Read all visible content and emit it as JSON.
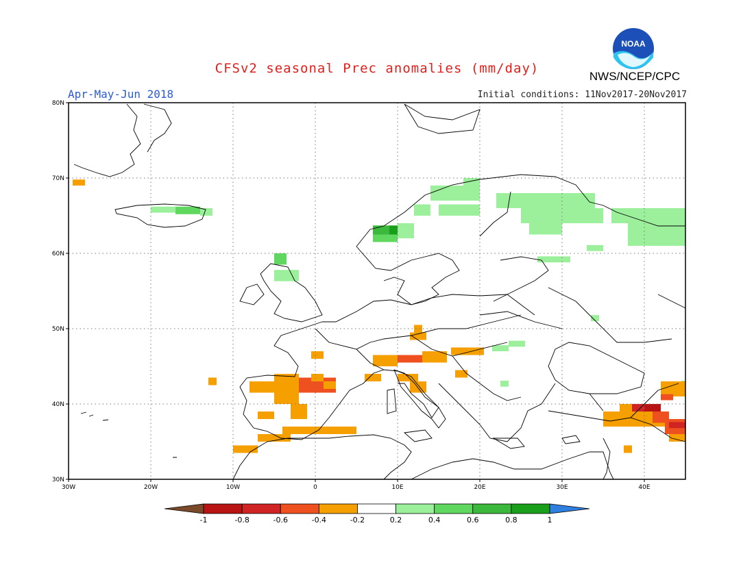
{
  "title": "CFSv2 seasonal Prec anomalies (mm/day)",
  "period": "Apr-May-Jun 2018",
  "initial_conditions": "Initial conditions: 11Nov2017-20Nov2017",
  "agency": "NWS/NCEP/CPC",
  "logo_text": "NOAA",
  "map": {
    "lon_range": [
      -30,
      45
    ],
    "lat_range": [
      30,
      80
    ],
    "lon_ticks": [
      {
        "value": -30,
        "label": "30W"
      },
      {
        "value": -20,
        "label": "20W"
      },
      {
        "value": -10,
        "label": "10W"
      },
      {
        "value": 0,
        "label": "0"
      },
      {
        "value": 10,
        "label": "10E"
      },
      {
        "value": 20,
        "label": "20E"
      },
      {
        "value": 30,
        "label": "30E"
      },
      {
        "value": 40,
        "label": "40E"
      }
    ],
    "lat_ticks": [
      {
        "value": 30,
        "label": "30N"
      },
      {
        "value": 40,
        "label": "40N"
      },
      {
        "value": 50,
        "label": "50N"
      },
      {
        "value": 60,
        "label": "60N"
      },
      {
        "value": 70,
        "label": "70N"
      },
      {
        "value": 80,
        "label": "80N"
      }
    ]
  },
  "colorbar": {
    "labels": [
      "-1",
      "-0.8",
      "-0.6",
      "-0.4",
      "-0.2",
      "0.2",
      "0.4",
      "0.6",
      "0.8",
      "1"
    ],
    "low_arrow_color": "#7a4a2a",
    "colors": [
      "#b81414",
      "#d02424",
      "#ee5020",
      "#f5a000",
      "#ffffff",
      "#9cf09c",
      "#60d860",
      "#3cb83c",
      "#199f19"
    ],
    "high_arrow_color": "#2f7fe0"
  },
  "anomaly_cells": [
    {
      "lon": -29.5,
      "lat": 69,
      "w": 1.5,
      "h": 0.8,
      "cls": "-0.4"
    },
    {
      "lon": -20,
      "lat": 65.4,
      "w": 3,
      "h": 0.8,
      "cls": "0.2"
    },
    {
      "lon": -17,
      "lat": 65.2,
      "w": 3,
      "h": 1,
      "cls": "0.4"
    },
    {
      "lon": -14,
      "lat": 65.0,
      "w": 1.5,
      "h": 1,
      "cls": "0.2"
    },
    {
      "lon": -5,
      "lat": 58.5,
      "w": 1.5,
      "h": 1.5,
      "cls": "0.4"
    },
    {
      "lon": -5,
      "lat": 56.3,
      "w": 3,
      "h": 1.5,
      "cls": "0.2"
    },
    {
      "lon": 7,
      "lat": 62.5,
      "w": 2,
      "h": 1.2,
      "cls": "0.6"
    },
    {
      "lon": 9,
      "lat": 62.5,
      "w": 1.5,
      "h": 1.2,
      "cls": "0.8"
    },
    {
      "lon": 7,
      "lat": 61.5,
      "w": 3,
      "h": 1,
      "cls": "0.4"
    },
    {
      "lon": 10,
      "lat": 62,
      "w": 2,
      "h": 2,
      "cls": "0.2"
    },
    {
      "lon": 12,
      "lat": 65,
      "w": 2,
      "h": 1.5,
      "cls": "0.2"
    },
    {
      "lon": 14,
      "lat": 67,
      "w": 6,
      "h": 2,
      "cls": "0.2"
    },
    {
      "lon": 15,
      "lat": 65,
      "w": 5,
      "h": 1.5,
      "cls": "0.2"
    },
    {
      "lon": 18,
      "lat": 68.5,
      "w": 2,
      "h": 1.5,
      "cls": "0.2"
    },
    {
      "lon": 22,
      "lat": 66,
      "w": 12,
      "h": 2,
      "cls": "0.2"
    },
    {
      "lon": 25,
      "lat": 64,
      "w": 10,
      "h": 2,
      "cls": "0.2"
    },
    {
      "lon": 26,
      "lat": 62.5,
      "w": 4,
      "h": 1.5,
      "cls": "0.2"
    },
    {
      "lon": 36,
      "lat": 64,
      "w": 9,
      "h": 2,
      "cls": "0.2"
    },
    {
      "lon": 38,
      "lat": 61,
      "w": 7,
      "h": 3,
      "cls": "0.2"
    },
    {
      "lon": 27,
      "lat": 58.8,
      "w": 4,
      "h": 0.8,
      "cls": "0.2"
    },
    {
      "lon": 33,
      "lat": 60.3,
      "w": 2,
      "h": 0.8,
      "cls": "0.2"
    },
    {
      "lon": 21.5,
      "lat": 47,
      "w": 2,
      "h": 0.8,
      "cls": "0.2"
    },
    {
      "lon": 23.5,
      "lat": 47.6,
      "w": 2,
      "h": 0.8,
      "cls": "0.2"
    },
    {
      "lon": 22.5,
      "lat": 42.3,
      "w": 1,
      "h": 0.8,
      "cls": "0.2"
    },
    {
      "lon": 33.5,
      "lat": 51,
      "w": 1,
      "h": 0.8,
      "cls": "0.2"
    },
    {
      "lon": 44.5,
      "lat": 42.3,
      "w": 0.5,
      "h": 0.8,
      "cls": "0.2"
    },
    {
      "lon": -2.5,
      "lat": 41.5,
      "w": 5,
      "h": 2,
      "cls": "-0.6"
    },
    {
      "lon": -5,
      "lat": 42,
      "w": 2.5,
      "h": 1,
      "cls": "-0.4"
    },
    {
      "lon": -8,
      "lat": 41.5,
      "w": 3,
      "h": 1.5,
      "cls": "-0.4"
    },
    {
      "lon": -13,
      "lat": 42.5,
      "w": 1,
      "h": 1,
      "cls": "-0.4"
    },
    {
      "lon": -5,
      "lat": 40,
      "w": 3,
      "h": 4,
      "cls": "-0.4"
    },
    {
      "lon": -7,
      "lat": 38,
      "w": 2,
      "h": 1,
      "cls": "-0.4"
    },
    {
      "lon": -3,
      "lat": 38,
      "w": 2,
      "h": 2,
      "cls": "-0.4"
    },
    {
      "lon": -0.5,
      "lat": 43,
      "w": 1.5,
      "h": 1,
      "cls": "-0.4"
    },
    {
      "lon": -0.5,
      "lat": 46,
      "w": 1.5,
      "h": 1,
      "cls": "-0.4"
    },
    {
      "lon": 1,
      "lat": 42,
      "w": 1.5,
      "h": 1,
      "cls": "-0.4"
    },
    {
      "lon": -4,
      "lat": 36,
      "w": 9,
      "h": 1,
      "cls": "-0.4"
    },
    {
      "lon": -7,
      "lat": 35,
      "w": 4,
      "h": 1,
      "cls": "-0.4"
    },
    {
      "lon": -10,
      "lat": 33.5,
      "w": 3,
      "h": 1,
      "cls": "-0.4"
    },
    {
      "lon": 6,
      "lat": 43,
      "w": 2,
      "h": 1,
      "cls": "-0.4"
    },
    {
      "lon": 7,
      "lat": 45,
      "w": 3,
      "h": 1.5,
      "cls": "-0.4"
    },
    {
      "lon": 10,
      "lat": 45.5,
      "w": 3,
      "h": 1,
      "cls": "-0.6"
    },
    {
      "lon": 13,
      "lat": 45.5,
      "w": 3,
      "h": 1.5,
      "cls": "-0.4"
    },
    {
      "lon": 11.5,
      "lat": 48.5,
      "w": 2,
      "h": 1,
      "cls": "-0.4"
    },
    {
      "lon": 12,
      "lat": 49.5,
      "w": 1,
      "h": 1,
      "cls": "-0.4"
    },
    {
      "lon": 16.5,
      "lat": 46.5,
      "w": 4,
      "h": 1,
      "cls": "-0.4"
    },
    {
      "lon": 10,
      "lat": 43,
      "w": 2.5,
      "h": 1,
      "cls": "-0.4"
    },
    {
      "lon": 11.5,
      "lat": 41.5,
      "w": 2,
      "h": 1.5,
      "cls": "-0.4"
    },
    {
      "lon": 17,
      "lat": 43.5,
      "w": 1.5,
      "h": 1,
      "cls": "-0.4"
    },
    {
      "lon": 35,
      "lat": 37,
      "w": 8,
      "h": 2,
      "cls": "-0.4"
    },
    {
      "lon": 37,
      "lat": 39,
      "w": 3,
      "h": 1,
      "cls": "-0.4"
    },
    {
      "lon": 42,
      "lat": 41,
      "w": 3,
      "h": 2,
      "cls": "-0.4"
    },
    {
      "lon": 43,
      "lat": 35,
      "w": 2,
      "h": 2,
      "cls": "-0.4"
    },
    {
      "lon": 37.5,
      "lat": 33.5,
      "w": 1,
      "h": 1,
      "cls": "-0.4"
    },
    {
      "lon": 38.5,
      "lat": 39,
      "w": 1.5,
      "h": 1,
      "cls": "-0.8"
    },
    {
      "lon": 40,
      "lat": 39,
      "w": 2,
      "h": 1,
      "cls": "-1"
    },
    {
      "lon": 41,
      "lat": 37.5,
      "w": 2,
      "h": 1.5,
      "cls": "-0.6"
    },
    {
      "lon": 42.5,
      "lat": 36,
      "w": 2.5,
      "h": 2,
      "cls": "-0.6"
    },
    {
      "lon": 43,
      "lat": 36.8,
      "w": 2,
      "h": 0.8,
      "cls": "-0.8"
    },
    {
      "lon": 42,
      "lat": 40.5,
      "w": 1.5,
      "h": 0.8,
      "cls": "-0.6"
    }
  ]
}
